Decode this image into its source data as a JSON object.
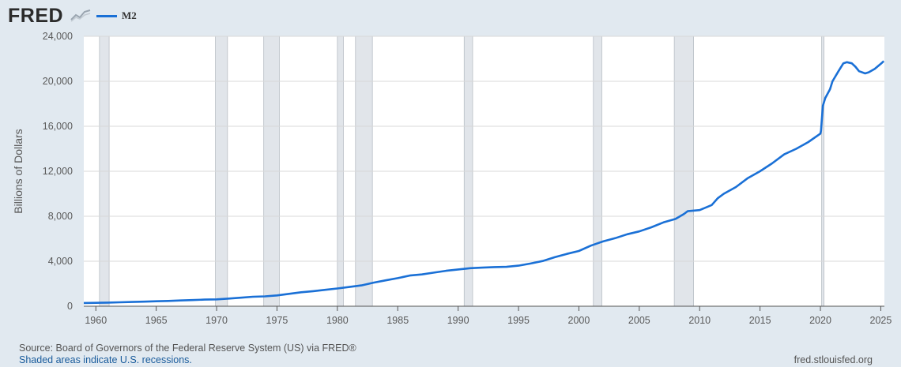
{
  "header": {
    "logo_text": "FRED",
    "logo_icon": "line-chart-icon",
    "legend_label": "M2",
    "legend_color": "#1a70d6"
  },
  "footer": {
    "source": "Source: Board of Governors of the Federal Reserve System (US) via FRED®",
    "note": "Shaded areas indicate U.S. recessions.",
    "url": "fred.stlouisfed.org"
  },
  "colors": {
    "background": "#e1e9f0",
    "plot_background": "#ffffff",
    "line": "#1a70d6",
    "recession": "#e1e5ea",
    "grid": "#d8d8d8"
  },
  "chart_data": {
    "type": "line",
    "title": "",
    "xlabel": "",
    "ylabel": "Billions of Dollars",
    "xlim": [
      1959.0,
      2025.3
    ],
    "ylim": [
      0,
      24000
    ],
    "grid": "horizontal",
    "x_ticks": [
      1960,
      1965,
      1970,
      1975,
      1980,
      1985,
      1990,
      1995,
      2000,
      2005,
      2010,
      2015,
      2020,
      2025
    ],
    "y_ticks": [
      0,
      4000,
      8000,
      12000,
      16000,
      20000,
      24000
    ],
    "y_tick_labels": [
      "0",
      "4,000",
      "8,000",
      "12,000",
      "16,000",
      "20,000",
      "24,000"
    ],
    "recessions": [
      [
        1960.3,
        1961.1
      ],
      [
        1969.9,
        1970.9
      ],
      [
        1973.9,
        1975.2
      ],
      [
        1980.0,
        1980.5
      ],
      [
        1981.5,
        1982.9
      ],
      [
        1990.5,
        1991.2
      ],
      [
        2001.2,
        2001.9
      ],
      [
        2007.9,
        2009.5
      ],
      [
        2020.1,
        2020.3
      ]
    ],
    "series": [
      {
        "name": "M2",
        "x": [
          1959.0,
          1960.0,
          1961.0,
          1962.0,
          1963.0,
          1964.0,
          1965.0,
          1966.0,
          1967.0,
          1968.0,
          1969.0,
          1970.0,
          1971.0,
          1972.0,
          1973.0,
          1974.0,
          1975.0,
          1976.0,
          1977.0,
          1978.0,
          1979.0,
          1980.0,
          1981.0,
          1982.0,
          1983.0,
          1984.0,
          1985.0,
          1986.0,
          1987.0,
          1988.0,
          1989.0,
          1990.0,
          1991.0,
          1992.0,
          1993.0,
          1994.0,
          1995.0,
          1996.0,
          1997.0,
          1998.0,
          1999.0,
          2000.0,
          2001.0,
          2002.0,
          2003.0,
          2004.0,
          2005.0,
          2006.0,
          2007.0,
          2008.0,
          2008.7,
          2009.0,
          2010.0,
          2011.0,
          2011.5,
          2012.0,
          2013.0,
          2014.0,
          2015.0,
          2016.0,
          2017.0,
          2018.0,
          2019.0,
          2020.0,
          2020.05,
          2020.2,
          2020.4,
          2020.8,
          2021.0,
          2021.5,
          2021.9,
          2022.2,
          2022.6,
          2022.9,
          2023.2,
          2023.7,
          2024.0,
          2024.5,
          2025.0,
          2025.25
        ],
        "y": [
          290,
          300,
          320,
          350,
          380,
          410,
          440,
          470,
          510,
          550,
          590,
          610,
          680,
          760,
          840,
          880,
          960,
          1100,
          1240,
          1340,
          1460,
          1580,
          1710,
          1850,
          2100,
          2300,
          2500,
          2730,
          2830,
          2990,
          3150,
          3270,
          3380,
          3430,
          3480,
          3500,
          3610,
          3800,
          4020,
          4360,
          4650,
          4910,
          5390,
          5760,
          6050,
          6400,
          6650,
          7020,
          7450,
          7760,
          8200,
          8450,
          8550,
          9000,
          9600,
          10000,
          10600,
          11400,
          12000,
          12700,
          13500,
          14000,
          14600,
          15350,
          15600,
          17800,
          18500,
          19300,
          20000,
          20900,
          21600,
          21700,
          21600,
          21300,
          20900,
          20700,
          20800,
          21100,
          21550,
          21800
        ]
      }
    ]
  }
}
